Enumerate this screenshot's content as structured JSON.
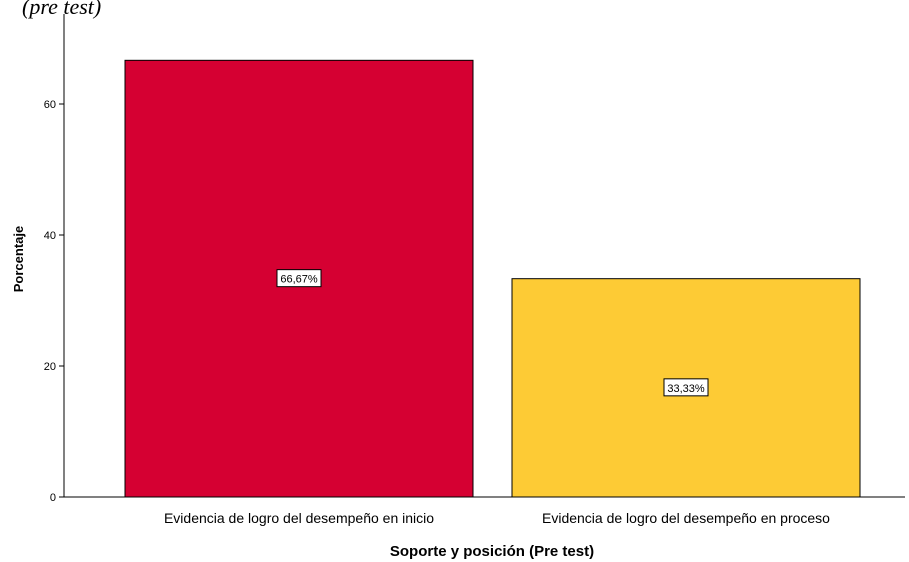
{
  "page": {
    "title_fragment": "(pre test)"
  },
  "chart_data": {
    "type": "bar",
    "title": "",
    "xlabel": "Soporte y posición (Pre test)",
    "ylabel": "Porcentaje",
    "categories": [
      "Evidencia de logro del desempeño en inicio",
      "Evidencia de logro del desempeño en proceso"
    ],
    "values": [
      66.67,
      33.33
    ],
    "data_labels": [
      "66,67%",
      "33,33%"
    ],
    "colors": [
      "#d50032",
      "#fdcb35"
    ],
    "yticks": [
      0,
      20,
      40,
      60
    ],
    "ylim": [
      0,
      70
    ],
    "grid": false,
    "legend": "none"
  }
}
